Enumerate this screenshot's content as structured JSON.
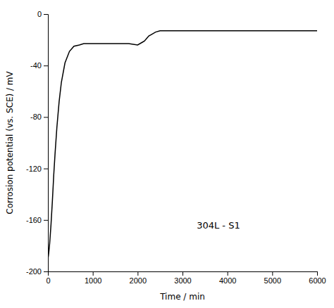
{
  "chart_data": {
    "type": "line",
    "x": [
      0,
      5,
      10,
      20,
      40,
      70,
      100,
      130,
      160,
      200,
      250,
      300,
      380,
      480,
      580,
      700,
      800,
      900,
      1000,
      1200,
      1400,
      1600,
      1800,
      2000,
      2100,
      2150,
      2200,
      2250,
      2300,
      2400,
      2500,
      2700,
      3000,
      3500,
      4000,
      4500,
      5000,
      5500,
      6000
    ],
    "values": [
      -190,
      -189,
      -188,
      -185,
      -178,
      -163,
      -145,
      -125,
      -108,
      -88,
      -68,
      -53,
      -38,
      -29,
      -25,
      -24,
      -23,
      -23,
      -23,
      -23,
      -23,
      -23,
      -23,
      -24,
      -22,
      -21,
      -19,
      -17,
      -16,
      -14,
      -13,
      -13,
      -13,
      -13,
      -13,
      -13,
      -13,
      -13,
      -13
    ],
    "color": "#000000",
    "xlabel": "Time / min",
    "ylabel": "Corrosion potential (vs. SCE) / mV",
    "xlim": [
      0,
      6000
    ],
    "ylim": [
      -200,
      0
    ],
    "xticks": [
      0,
      1000,
      2000,
      3000,
      4000,
      5000,
      6000
    ],
    "yticks": [
      0,
      -40,
      -80,
      -120,
      -160,
      -200
    ],
    "grid": false,
    "annotations": [
      {
        "text": "304L - S1",
        "x": 3800,
        "y": -165
      }
    ]
  }
}
